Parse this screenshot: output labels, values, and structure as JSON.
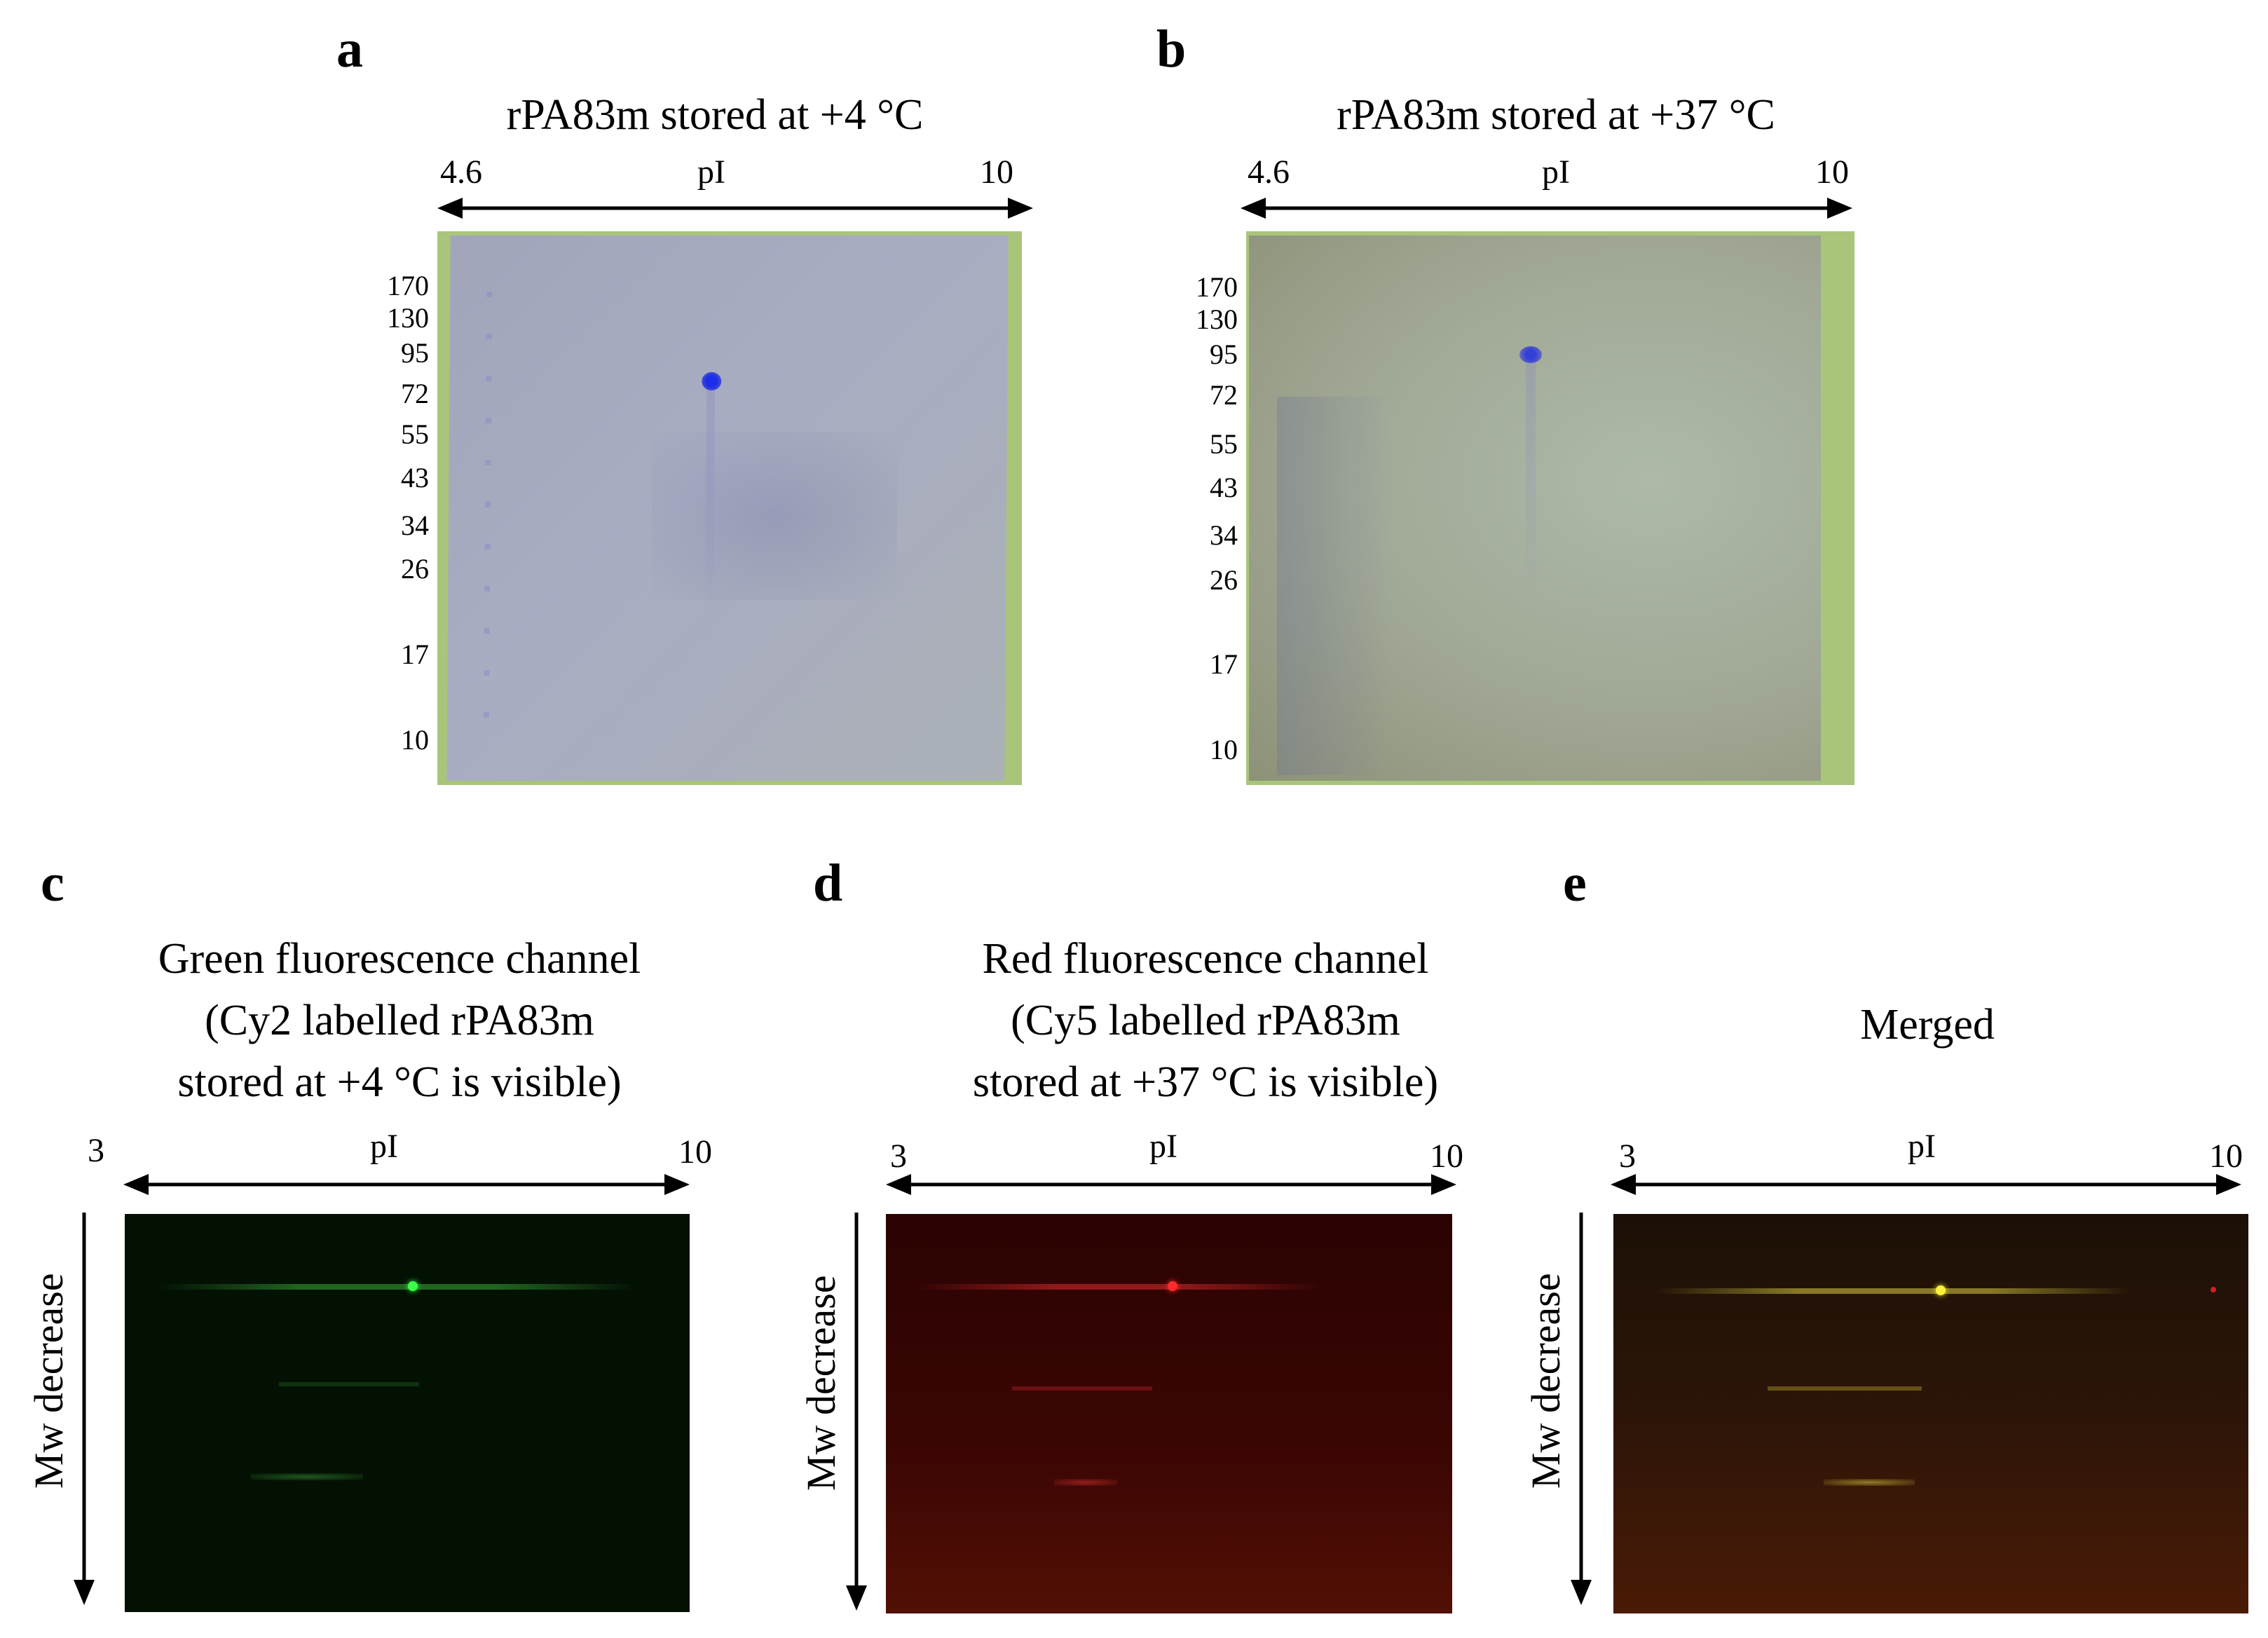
{
  "panels": {
    "a": {
      "letter": "a",
      "title": "rPA83m stored at +4 °C",
      "pi_min": "4.6",
      "pi_max": "10",
      "pi_label": "pI",
      "mw_markers": [
        "170",
        "130",
        "95",
        "72",
        "55",
        "43",
        "34",
        "26",
        "17",
        "10"
      ]
    },
    "b": {
      "letter": "b",
      "title": "rPA83m stored at +37 °C",
      "pi_min": "4.6",
      "pi_max": "10",
      "pi_label": "pI",
      "mw_markers": [
        "170",
        "130",
        "95",
        "72",
        "55",
        "43",
        "34",
        "26",
        "17",
        "10"
      ]
    },
    "c": {
      "letter": "c",
      "title_lines": [
        "Green fluorescence channel",
        "(Cy2 labelled rPA83m",
        "stored at +4 °C is visible)"
      ],
      "pi_min": "3",
      "pi_max": "10",
      "pi_label": "pI",
      "mw_label": "Mw decrease"
    },
    "d": {
      "letter": "d",
      "title_lines": [
        "Red fluorescence channel",
        "(Cy5 labelled rPA83m",
        "stored at +37 °C is visible)"
      ],
      "pi_min": "3",
      "pi_max": "10",
      "pi_label": "pI",
      "mw_label": "Mw decrease"
    },
    "e": {
      "letter": "e",
      "title": "Merged",
      "pi_min": "3",
      "pi_max": "10",
      "pi_label": "pI",
      "mw_label": "Mw decrease"
    }
  },
  "colors": {
    "gel_border": "#a9c57a",
    "gel_a": "#a7abc0",
    "gel_b": "#9ea392",
    "spot_blue": "#2a3ad6",
    "green_spot": "#39ff4a",
    "red_spot": "#ff2a2a",
    "yellow_spot": "#fff23a"
  }
}
